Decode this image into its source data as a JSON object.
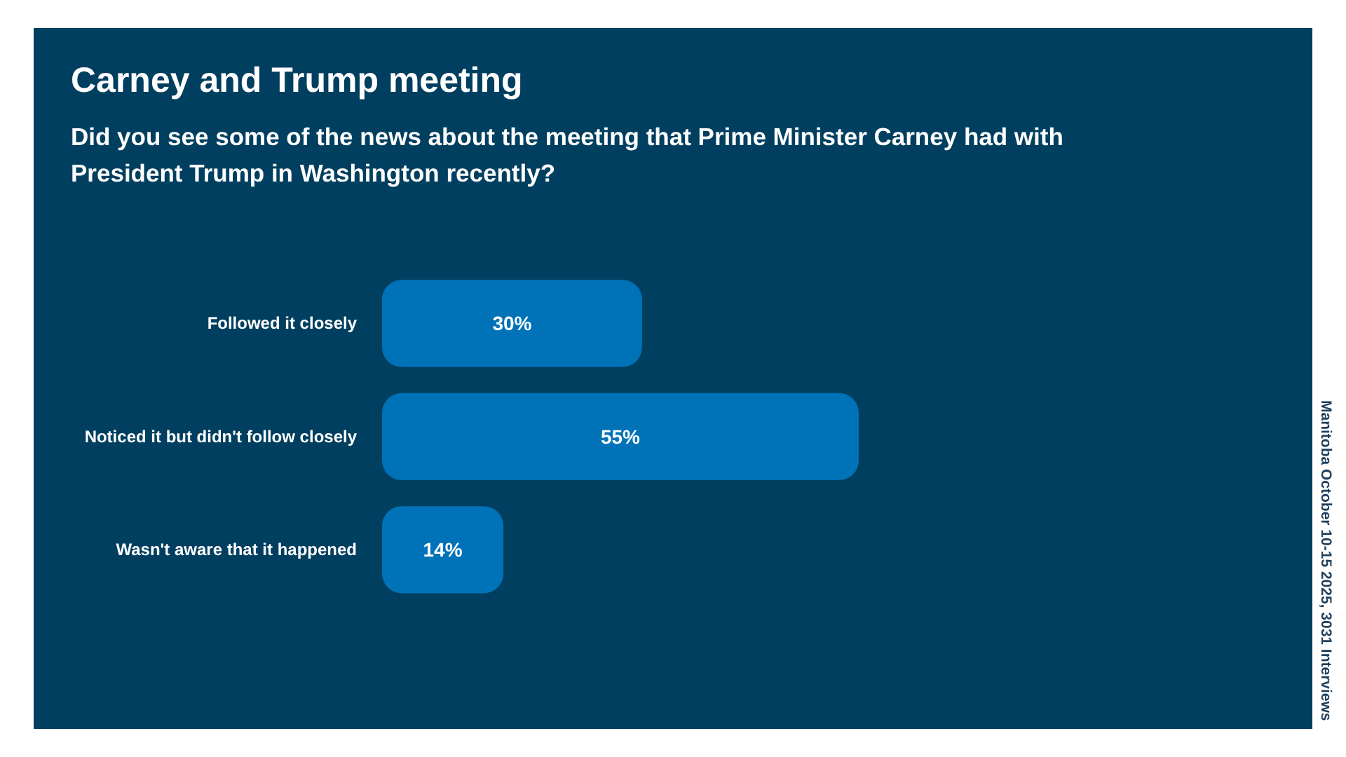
{
  "chart_data": {
    "type": "bar",
    "orientation": "horizontal",
    "title": "Carney and Trump meeting",
    "subtitle": "Did you see some of the news about the meeting that Prime Minister Carney had with President Trump in Washington recently?",
    "categories": [
      "Followed it closely",
      "Noticed it but didn't follow closely",
      "Wasn't aware that it happened"
    ],
    "values": [
      30,
      55,
      14
    ],
    "color": "#0072b8",
    "value_labels": [
      "30%",
      "55%",
      "14%"
    ],
    "annotations": [
      "Manitoba October 10-15 2025, 3031 Interviews"
    ],
    "tick_labels": "y"
  }
}
